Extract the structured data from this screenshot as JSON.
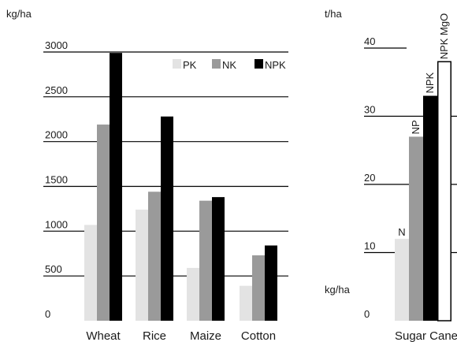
{
  "chart_data": [
    {
      "type": "bar",
      "ylabel": "kg/ha",
      "ylim": [
        0,
        3000
      ],
      "yticks": [
        0,
        500,
        1000,
        1500,
        2000,
        2500,
        3000
      ],
      "categories": [
        "Wheat",
        "Rice",
        "Maize",
        "Cotton"
      ],
      "series": [
        {
          "name": "PK",
          "color": "#e3e3e3",
          "values": [
            1070,
            1240,
            590,
            390
          ]
        },
        {
          "name": "NK",
          "color": "#9a9a9a",
          "values": [
            2190,
            1440,
            1340,
            730
          ]
        },
        {
          "name": "NPK",
          "color": "#000000",
          "values": [
            2990,
            2280,
            1380,
            840
          ]
        }
      ],
      "legend": "top-right",
      "grid": true
    },
    {
      "type": "bar",
      "ylabel_top": "t/ha",
      "ylabel_bottom": "kg/ha",
      "ylim": [
        0,
        40
      ],
      "yticks": [
        0,
        10,
        20,
        30,
        40
      ],
      "category": "Sugar Cane",
      "bars": [
        {
          "label": "N",
          "value": 12,
          "color": "#e3e3e3"
        },
        {
          "label": "NP",
          "value": 27,
          "color": "#9a9a9a"
        },
        {
          "label": "NPK",
          "value": 33,
          "color": "#000000"
        },
        {
          "label": "NPK MgO",
          "value": 38,
          "color": "#ffffff"
        }
      ],
      "grid": true
    }
  ]
}
